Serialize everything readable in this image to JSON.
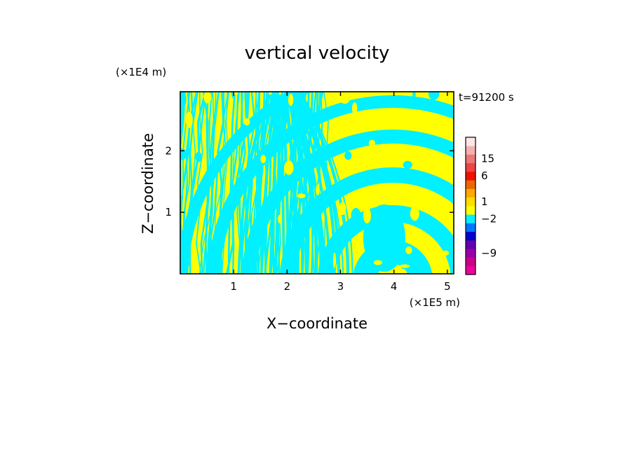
{
  "chart_data": {
    "type": "heatmap",
    "title": "vertical velocity",
    "xlabel": "X−coordinate",
    "ylabel": "Z−coordinate",
    "x_unit": "(×1E5 m)",
    "y_unit": "(×1E4 m)",
    "time_label": "t=91200 s",
    "xlim": [
      0,
      5.12
    ],
    "ylim": [
      0,
      2.96
    ],
    "x_ticks": [
      {
        "value": 1,
        "label": "1"
      },
      {
        "value": 2,
        "label": "2"
      },
      {
        "value": 3,
        "label": "3"
      },
      {
        "value": 4,
        "label": "4"
      },
      {
        "value": 5,
        "label": "5"
      }
    ],
    "y_ticks": [
      {
        "value": 1,
        "label": "1"
      },
      {
        "value": 2,
        "label": "2"
      }
    ],
    "dominant_colors": {
      "positive": "#ffff00",
      "negative": "#00f0ff"
    },
    "colorbar": {
      "levels": [
        {
          "color": "#ee0099"
        },
        {
          "color": "#cc0088"
        },
        {
          "color": "#9900aa"
        },
        {
          "color": "#6600aa"
        },
        {
          "color": "#0000cc"
        },
        {
          "color": "#0077ff"
        },
        {
          "color": "#00f0ff"
        },
        {
          "color": "#ffff00"
        },
        {
          "color": "#ffdd00"
        },
        {
          "color": "#ffaa00"
        },
        {
          "color": "#ee6600"
        },
        {
          "color": "#ee1100"
        },
        {
          "color": "#ee4444"
        },
        {
          "color": "#ee7777"
        },
        {
          "color": "#f4b0b0"
        },
        {
          "color": "#fde6e6"
        }
      ],
      "labels": [
        {
          "value": 15,
          "label": "15"
        },
        {
          "value": 6,
          "label": "6"
        },
        {
          "value": 1,
          "label": "1"
        },
        {
          "value": -2,
          "label": "−2"
        },
        {
          "value": -9,
          "label": "−9"
        }
      ]
    }
  }
}
